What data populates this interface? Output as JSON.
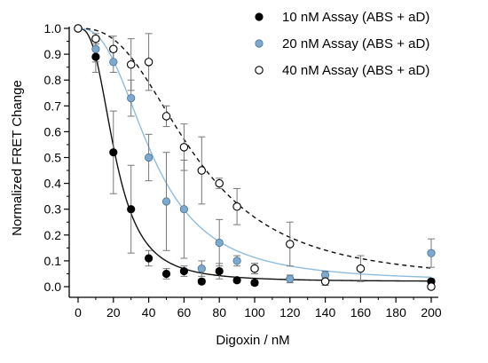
{
  "chart_data": {
    "type": "scatter",
    "xlabel": "Digoxin / nM",
    "ylabel": "Normalized FRET Change",
    "xlim": [
      0,
      200
    ],
    "ylim": [
      0,
      1.0
    ],
    "xticks": [
      0,
      20,
      40,
      60,
      80,
      100,
      120,
      140,
      160,
      180,
      200
    ],
    "yticks": [
      0.0,
      0.1,
      0.2,
      0.3,
      0.4,
      0.5,
      0.6,
      0.7,
      0.8,
      0.9,
      1.0
    ],
    "grid": false,
    "legend_position": "top-right",
    "series": [
      {
        "name": "10 nM Assay (ABS + aD)",
        "marker": "filled-black",
        "color": "#000000",
        "fit_style": "solid",
        "fit_color": "#111111",
        "points": [
          {
            "x": 0,
            "y": 1.0,
            "err": 0.0
          },
          {
            "x": 10,
            "y": 0.89,
            "err": 0.06
          },
          {
            "x": 20,
            "y": 0.52,
            "err": 0.16
          },
          {
            "x": 30,
            "y": 0.3,
            "err": 0.17
          },
          {
            "x": 40,
            "y": 0.11,
            "err": 0.03
          },
          {
            "x": 50,
            "y": 0.05,
            "err": 0.02
          },
          {
            "x": 60,
            "y": 0.06,
            "err": 0.02
          },
          {
            "x": 70,
            "y": 0.02,
            "err": 0.01
          },
          {
            "x": 80,
            "y": 0.06,
            "err": 0.03
          },
          {
            "x": 90,
            "y": 0.025,
            "err": 0.01
          },
          {
            "x": 100,
            "y": 0.015,
            "err": 0.01
          },
          {
            "x": 200,
            "y": 0.02,
            "err": 0.01
          }
        ],
        "fit": {
          "top": 1.0,
          "bottom": 0.02,
          "ec50": 21,
          "hill": 2.8
        }
      },
      {
        "name": "20 nM Assay (ABS + aD)",
        "marker": "filled-blue",
        "color": "#7ea9cf",
        "fit_style": "solid",
        "fit_color": "#8fbde0",
        "points": [
          {
            "x": 0,
            "y": 1.0,
            "err": 0.0
          },
          {
            "x": 10,
            "y": 0.92,
            "err": 0.05
          },
          {
            "x": 20,
            "y": 0.87,
            "err": 0.04
          },
          {
            "x": 30,
            "y": 0.73,
            "err": 0.07
          },
          {
            "x": 40,
            "y": 0.5,
            "err": 0.09
          },
          {
            "x": 50,
            "y": 0.33,
            "err": 0.19
          },
          {
            "x": 60,
            "y": 0.3,
            "err": 0.19
          },
          {
            "x": 70,
            "y": 0.07,
            "err": 0.03
          },
          {
            "x": 80,
            "y": 0.17,
            "err": 0.09
          },
          {
            "x": 90,
            "y": 0.1,
            "err": 0.02
          },
          {
            "x": 100,
            "y": 0.07,
            "err": 0.02
          },
          {
            "x": 120,
            "y": 0.03,
            "err": 0.015
          },
          {
            "x": 140,
            "y": 0.045,
            "err": 0.015
          },
          {
            "x": 200,
            "y": 0.13,
            "err": 0.055
          }
        ],
        "fit": {
          "top": 1.0,
          "bottom": 0.02,
          "ec50": 42,
          "hill": 2.6
        }
      },
      {
        "name": "40 nM Assay (ABS + aD)",
        "marker": "open-circle",
        "color": "#000000",
        "fit_style": "dashed",
        "fit_color": "#111111",
        "points": [
          {
            "x": 0,
            "y": 1.0,
            "err": 0.0
          },
          {
            "x": 10,
            "y": 0.96,
            "err": 0.02
          },
          {
            "x": 20,
            "y": 0.92,
            "err": 0.05
          },
          {
            "x": 30,
            "y": 0.86,
            "err": 0.1
          },
          {
            "x": 40,
            "y": 0.87,
            "err": 0.11
          },
          {
            "x": 50,
            "y": 0.66,
            "err": 0.04
          },
          {
            "x": 60,
            "y": 0.54,
            "err": 0.09
          },
          {
            "x": 70,
            "y": 0.45,
            "err": 0.13
          },
          {
            "x": 80,
            "y": 0.4,
            "err": 0.02
          },
          {
            "x": 90,
            "y": 0.31,
            "err": 0.07
          },
          {
            "x": 100,
            "y": 0.07,
            "err": 0.02
          },
          {
            "x": 120,
            "y": 0.165,
            "err": 0.085
          },
          {
            "x": 140,
            "y": 0.02,
            "err": 0.015
          },
          {
            "x": 160,
            "y": 0.07,
            "err": 0.05
          },
          {
            "x": 200,
            "y": 0.0,
            "err": 0.01
          }
        ],
        "fit": {
          "top": 1.0,
          "bottom": 0.02,
          "ec50": 66,
          "hill": 2.6
        }
      }
    ]
  }
}
